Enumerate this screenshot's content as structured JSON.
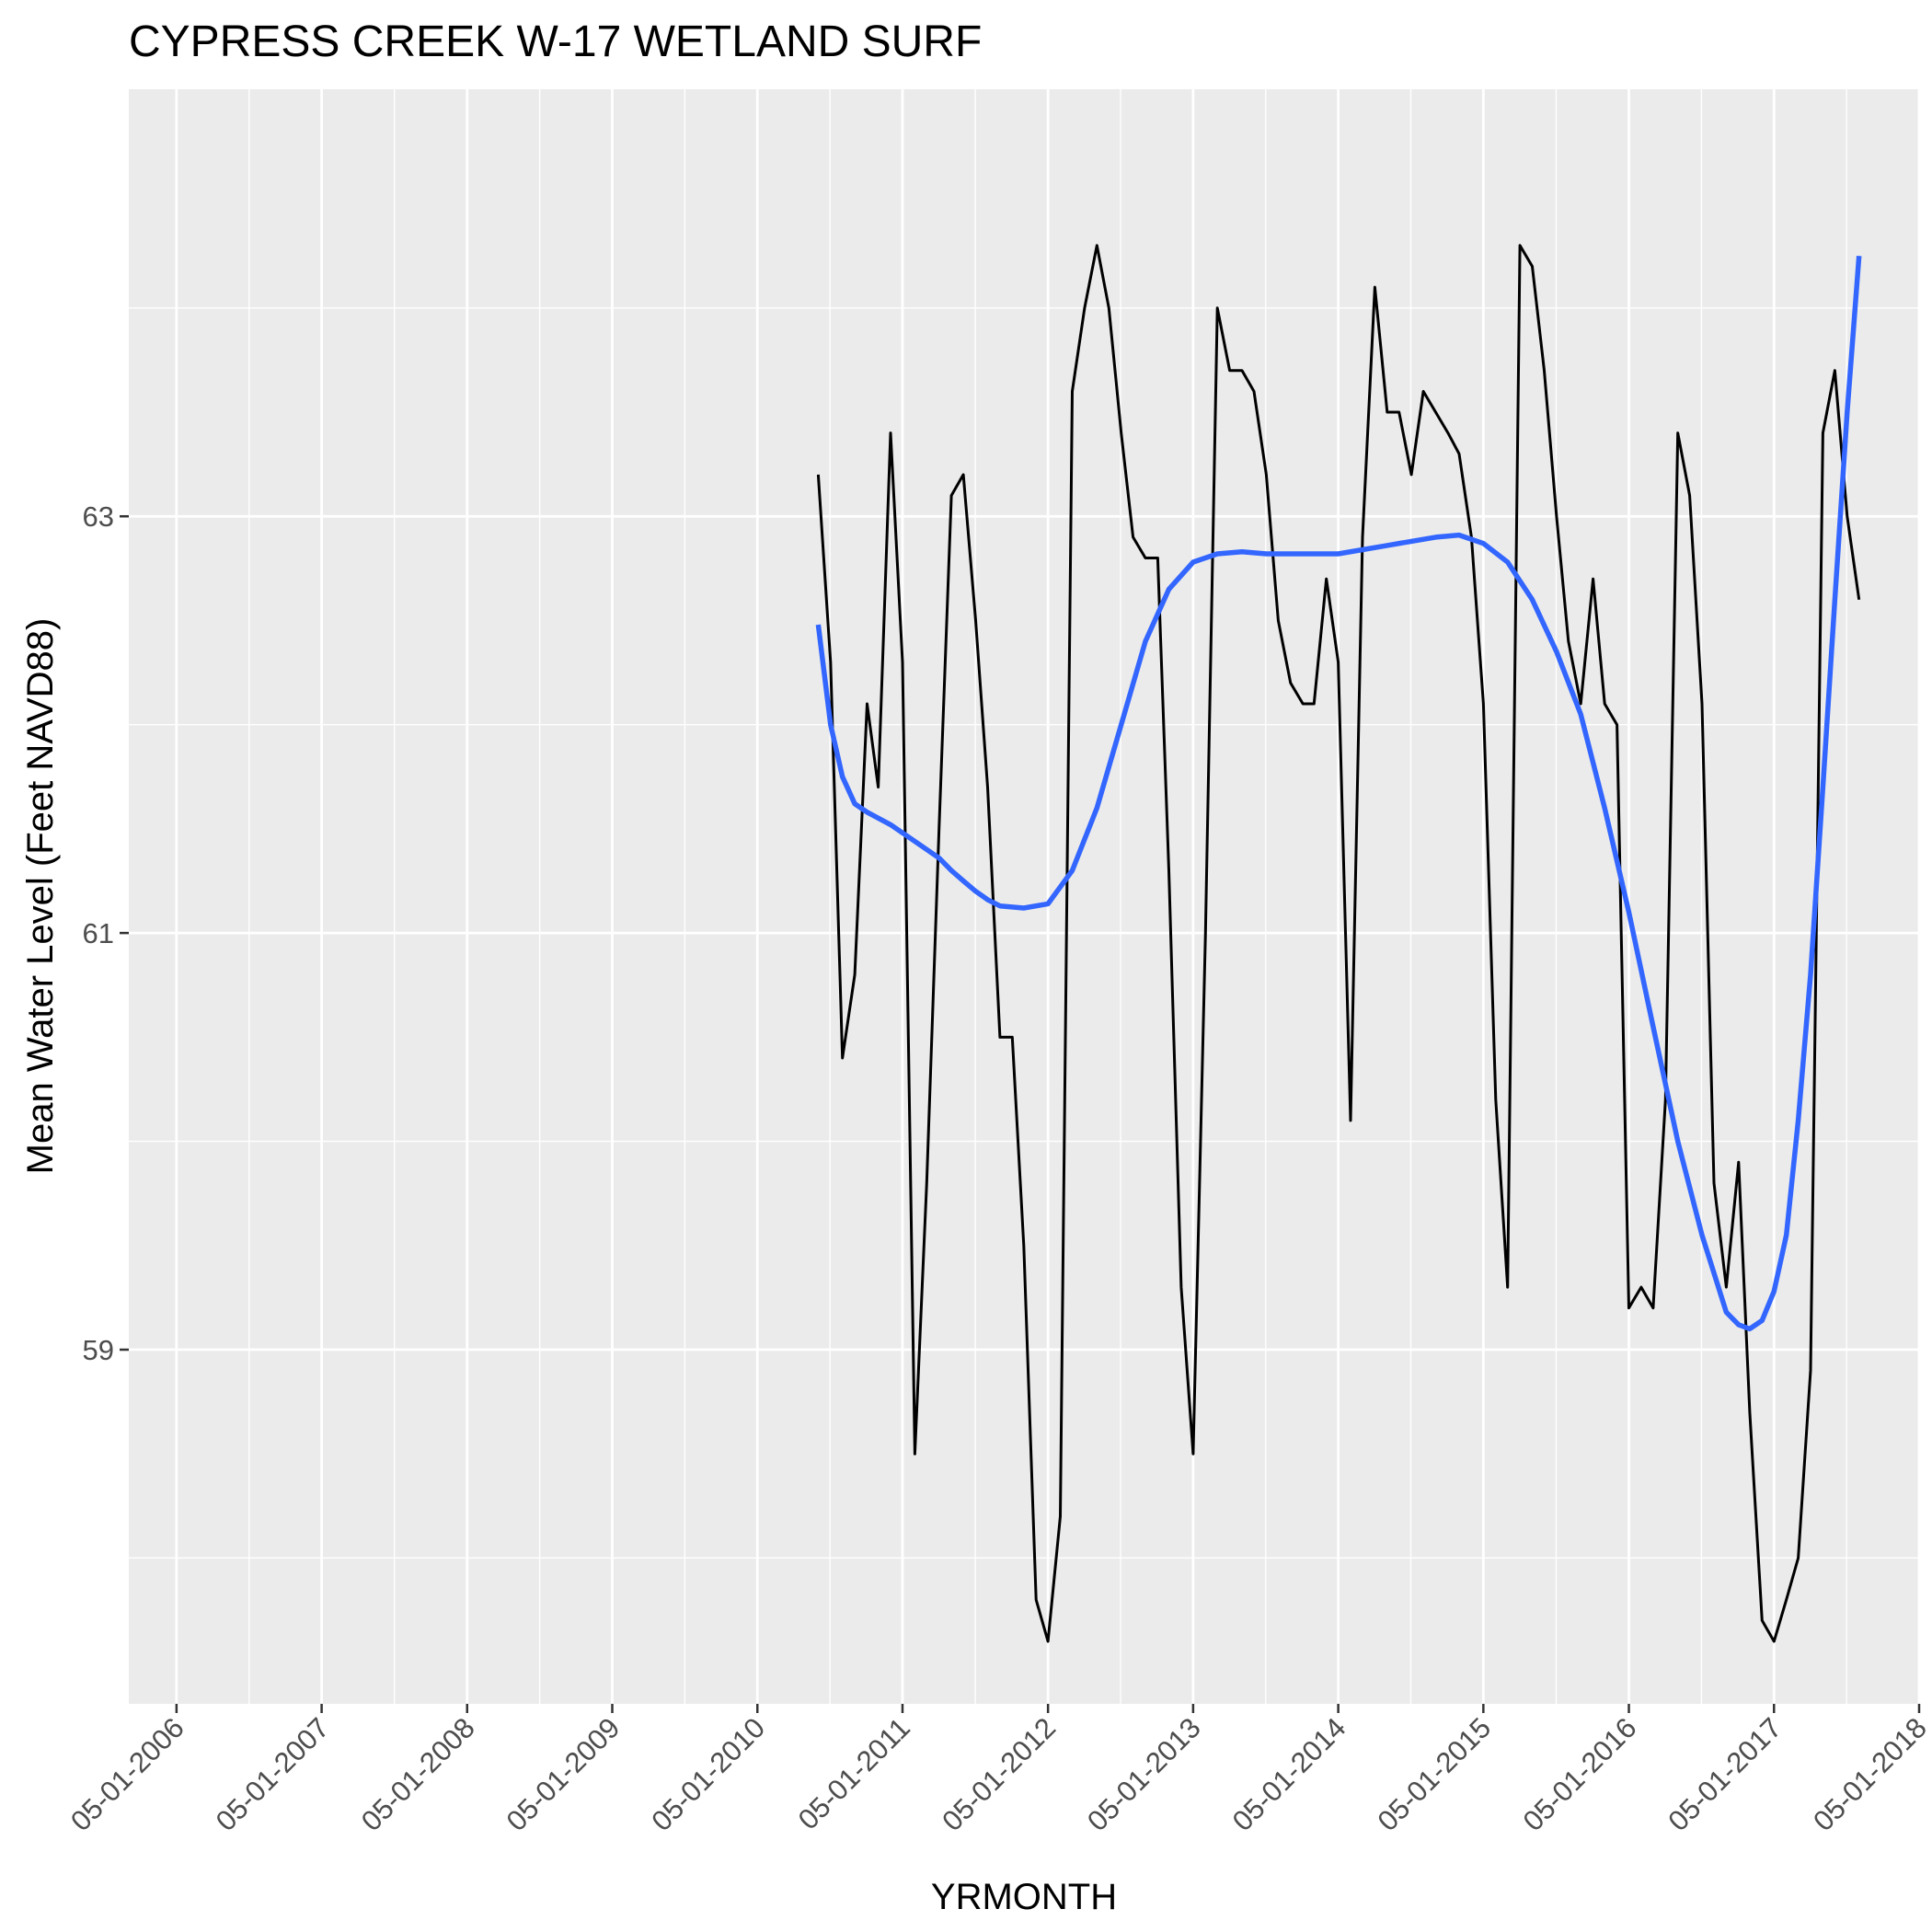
{
  "chart_data": {
    "type": "line",
    "title": "CYPRESS CREEK W-17 WETLAND SURF",
    "xlabel": "YRMONTH",
    "ylabel": "Mean Water Level (Feet NAVD88)",
    "x_axis_type": "date",
    "xlim": [
      "2006-01-01",
      "2018-05-01"
    ],
    "ylim": [
      57.3,
      65.05
    ],
    "x_ticks": [
      "2006-05-01",
      "2007-05-01",
      "2008-05-01",
      "2009-05-01",
      "2010-05-01",
      "2011-05-01",
      "2012-05-01",
      "2013-05-01",
      "2014-05-01",
      "2015-05-01",
      "2016-05-01",
      "2017-05-01",
      "2018-05-01"
    ],
    "x_tick_labels": [
      "05-01-2006",
      "05-01-2007",
      "05-01-2008",
      "05-01-2009",
      "05-01-2010",
      "05-01-2011",
      "05-01-2012",
      "05-01-2013",
      "05-01-2014",
      "05-01-2015",
      "05-01-2016",
      "05-01-2017",
      "05-01-2018"
    ],
    "y_ticks": [
      59,
      61,
      63
    ],
    "y_tick_labels": [
      "59",
      "61",
      "63"
    ],
    "grid": true,
    "background": "#ebebeb",
    "series": [
      {
        "kind": "observed",
        "color": "#000000",
        "x": [
          "2010-10-01",
          "2010-11-01",
          "2010-12-01",
          "2011-01-01",
          "2011-02-01",
          "2011-03-01",
          "2011-04-01",
          "2011-05-01",
          "2011-06-01",
          "2011-07-01",
          "2011-08-01",
          "2011-09-01",
          "2011-10-01",
          "2011-11-01",
          "2011-12-01",
          "2012-01-01",
          "2012-02-01",
          "2012-03-01",
          "2012-04-01",
          "2012-05-01",
          "2012-06-01",
          "2012-07-01",
          "2012-08-01",
          "2012-09-01",
          "2012-10-01",
          "2012-11-01",
          "2012-12-01",
          "2013-01-01",
          "2013-02-01",
          "2013-03-01",
          "2013-04-01",
          "2013-05-01",
          "2013-06-01",
          "2013-07-01",
          "2013-08-01",
          "2013-09-01",
          "2013-10-01",
          "2013-11-01",
          "2013-12-01",
          "2014-01-01",
          "2014-02-01",
          "2014-03-01",
          "2014-04-01",
          "2014-05-01",
          "2014-06-01",
          "2014-07-01",
          "2014-08-01",
          "2014-09-01",
          "2014-10-01",
          "2014-11-01",
          "2014-12-01",
          "2015-01-01",
          "2015-02-01",
          "2015-03-01",
          "2015-04-01",
          "2015-05-01",
          "2015-06-01",
          "2015-07-01",
          "2015-08-01",
          "2015-09-01",
          "2015-10-01",
          "2015-11-01",
          "2015-12-01",
          "2016-01-01",
          "2016-02-01",
          "2016-03-01",
          "2016-04-01",
          "2016-05-01",
          "2016-06-01",
          "2016-07-01",
          "2016-08-01",
          "2016-09-01",
          "2016-10-01",
          "2016-11-01",
          "2016-12-01",
          "2017-01-01",
          "2017-02-01",
          "2017-03-01",
          "2017-04-01",
          "2017-05-01",
          "2017-06-01",
          "2017-07-01",
          "2017-08-01",
          "2017-09-01",
          "2017-10-01",
          "2017-11-01",
          "2017-12-01"
        ],
        "y": [
          63.2,
          62.3,
          60.4,
          60.8,
          62.1,
          61.7,
          63.4,
          62.3,
          58.5,
          59.8,
          61.5,
          63.1,
          63.2,
          62.5,
          61.7,
          60.5,
          60.5,
          59.5,
          57.8,
          57.6,
          58.2,
          63.6,
          64.0,
          64.3,
          64.0,
          63.4,
          62.9,
          62.8,
          62.8,
          61.3,
          59.3,
          58.5,
          61.0,
          64.0,
          63.7,
          63.7,
          63.6,
          63.2,
          62.5,
          62.2,
          62.1,
          62.1,
          62.7,
          62.3,
          60.1,
          62.9,
          64.1,
          63.5,
          63.5,
          63.2,
          63.6,
          63.5,
          63.4,
          63.3,
          62.9,
          62.1,
          60.2,
          59.3,
          64.3,
          64.2,
          63.7,
          63.0,
          62.4,
          62.1,
          62.7,
          62.1,
          62.0,
          59.2,
          59.3,
          59.2,
          60.2,
          63.4,
          63.1,
          62.1,
          59.8,
          59.3,
          59.9,
          58.7,
          57.7,
          57.6,
          57.8,
          58.0,
          58.9,
          63.4,
          63.7,
          63.0,
          62.6
        ]
      },
      {
        "kind": "smooth",
        "color": "#3366ff",
        "x": [
          "2010-10-01",
          "2010-11-01",
          "2010-12-01",
          "2011-01-01",
          "2011-02-01",
          "2011-04-01",
          "2011-06-01",
          "2011-08-01",
          "2011-09-01",
          "2011-10-01",
          "2011-11-01",
          "2011-12-01",
          "2012-01-01",
          "2012-03-01",
          "2012-05-01",
          "2012-07-01",
          "2012-09-01",
          "2012-11-01",
          "2013-01-01",
          "2013-03-01",
          "2013-05-01",
          "2013-07-01",
          "2013-09-01",
          "2013-11-01",
          "2014-01-01",
          "2014-03-01",
          "2014-05-01",
          "2014-07-01",
          "2014-09-01",
          "2014-11-01",
          "2015-01-01",
          "2015-03-01",
          "2015-05-01",
          "2015-07-01",
          "2015-09-01",
          "2015-11-01",
          "2016-01-01",
          "2016-03-01",
          "2016-05-01",
          "2016-07-01",
          "2016-09-01",
          "2016-11-01",
          "2017-01-01",
          "2017-02-01",
          "2017-03-01",
          "2017-04-01",
          "2017-05-01",
          "2017-06-01",
          "2017-07-01",
          "2017-08-01",
          "2017-09-01",
          "2017-10-01",
          "2017-11-01",
          "2017-12-01"
        ],
        "y": [
          62.48,
          62.0,
          61.75,
          61.62,
          61.58,
          61.52,
          61.44,
          61.36,
          61.3,
          61.25,
          61.2,
          61.16,
          61.13,
          61.12,
          61.14,
          61.3,
          61.6,
          62.0,
          62.4,
          62.65,
          62.78,
          62.82,
          62.83,
          62.82,
          62.82,
          62.82,
          62.82,
          62.84,
          62.86,
          62.88,
          62.9,
          62.91,
          62.87,
          62.78,
          62.6,
          62.35,
          62.05,
          61.6,
          61.1,
          60.55,
          60.0,
          59.55,
          59.18,
          59.12,
          59.1,
          59.14,
          59.28,
          59.55,
          60.1,
          60.8,
          61.7,
          62.6,
          63.5,
          64.25
        ]
      }
    ]
  }
}
